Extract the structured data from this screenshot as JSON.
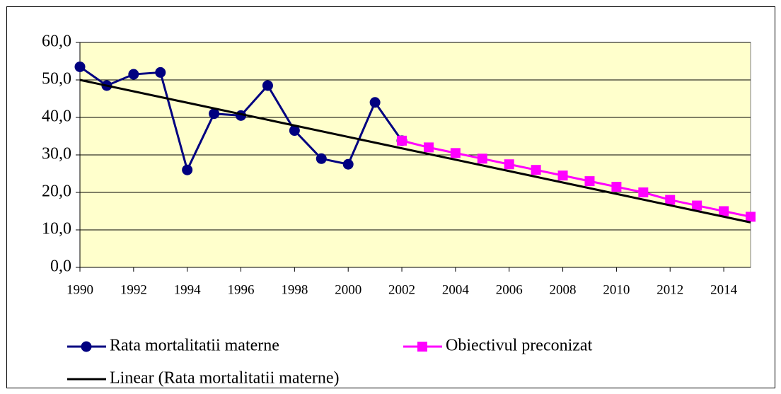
{
  "chart_data": {
    "type": "line",
    "xlim": [
      1990,
      2015
    ],
    "xticks": [
      1990,
      1992,
      1994,
      1996,
      1998,
      2000,
      2002,
      2004,
      2006,
      2008,
      2010,
      2012,
      2014
    ],
    "ylim": [
      0,
      60
    ],
    "yticks": [
      {
        "value": 0,
        "label": "0,0"
      },
      {
        "value": 10,
        "label": "10,0"
      },
      {
        "value": 20,
        "label": "20,0"
      },
      {
        "value": 30,
        "label": "30,0"
      },
      {
        "value": 40,
        "label": "40,0"
      },
      {
        "value": 50,
        "label": "50,0"
      },
      {
        "value": 60,
        "label": "60,0"
      }
    ],
    "grid": true,
    "legend": "bottom",
    "series": [
      {
        "name": "Rata mortalitatii materne",
        "color": "#000080",
        "marker": "circle",
        "x": [
          1990,
          1991,
          1992,
          1993,
          1994,
          1995,
          1996,
          1997,
          1998,
          1999,
          2000,
          2001,
          2002
        ],
        "values": [
          53.5,
          48.5,
          51.5,
          52,
          26,
          41,
          40.5,
          48.5,
          36.5,
          29,
          27.5,
          44,
          33.8
        ]
      },
      {
        "name": "Obiectivul preconizat",
        "color": "#ff00ff",
        "marker": "square",
        "x": [
          2002,
          2003,
          2004,
          2005,
          2006,
          2007,
          2008,
          2009,
          2010,
          2011,
          2012,
          2013,
          2014,
          2015
        ],
        "values": [
          33.8,
          32,
          30.5,
          29,
          27.5,
          26,
          24.5,
          23,
          21.5,
          20,
          18,
          16.5,
          15,
          13.5
        ]
      },
      {
        "name": "Linear (Rata mortalitatii materne)",
        "color": "#000000",
        "marker": "none",
        "x": [
          1990,
          2015
        ],
        "values": [
          50,
          12
        ]
      }
    ]
  }
}
